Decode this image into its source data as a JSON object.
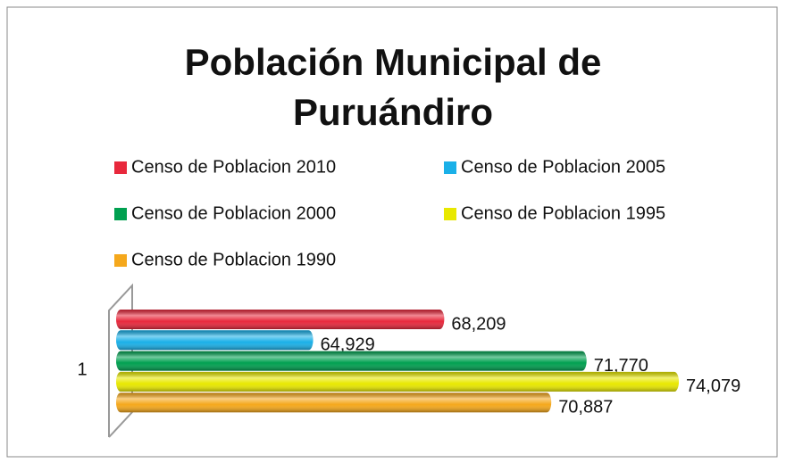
{
  "chart_data": {
    "type": "bar",
    "orientation": "horizontal",
    "title": "Población Municipal de Puruándiro",
    "categories": [
      "1"
    ],
    "series": [
      {
        "name": "Censo de Poblacion 2010",
        "color": "#e8283c",
        "values": [
          68209
        ],
        "value_labels": [
          "68,209"
        ]
      },
      {
        "name": "Censo de Poblacion 2005",
        "color": "#1ab0e8",
        "values": [
          64929
        ],
        "value_labels": [
          "64,929"
        ]
      },
      {
        "name": "Censo de Poblacion 2000",
        "color": "#00a050",
        "values": [
          71770
        ],
        "value_labels": [
          "71,770"
        ]
      },
      {
        "name": "Censo de Poblacion 1995",
        "color": "#e8e800",
        "values": [
          74079
        ],
        "value_labels": [
          "74,079"
        ]
      },
      {
        "name": "Censo de Poblacion 1990",
        "color": "#f5a81c",
        "values": [
          70887
        ],
        "value_labels": [
          "70,887"
        ]
      }
    ],
    "xlim": [
      60000,
      76000
    ],
    "legend": "top"
  }
}
